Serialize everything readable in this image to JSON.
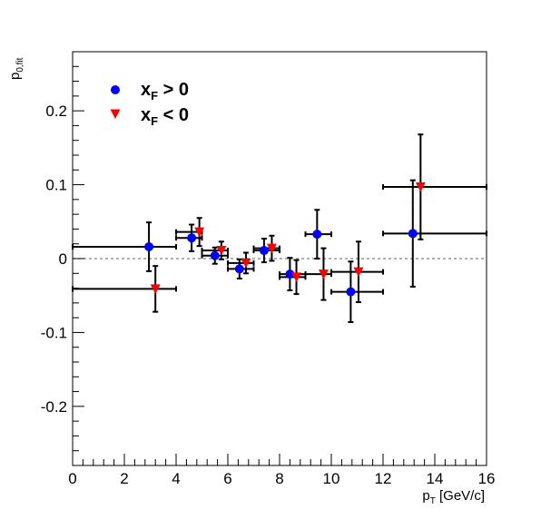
{
  "chart_data": {
    "type": "scatter",
    "xlabel_main": "p",
    "xlabel_sub": "T",
    "xlabel_rest": " [GeV/c]",
    "ylabel_main": "p",
    "ylabel_sub": "0,fit",
    "xlim": [
      0,
      16
    ],
    "ylim": [
      -0.28,
      0.28
    ],
    "x_ticks": [
      "0",
      "2",
      "4",
      "6",
      "8",
      "10",
      "12",
      "14",
      "16"
    ],
    "y_ticks": [
      "-0.2",
      "-0.1",
      "0",
      "0.1",
      "0.2"
    ],
    "y_tick_values": [
      -0.2,
      -0.1,
      0,
      0.1,
      0.2
    ],
    "x_tick_values": [
      0,
      2,
      4,
      6,
      8,
      10,
      12,
      14,
      16
    ],
    "reference_line": 0,
    "legend_position": "top-left",
    "series": [
      {
        "legend_main": "x",
        "legend_sub": "F",
        "legend_rest": " > 0",
        "marker": "circle",
        "color": "#0000ff",
        "points": [
          {
            "x": 2.95,
            "xlo": 0.0,
            "xhi": 4.0,
            "y": 0.016,
            "err": 0.033
          },
          {
            "x": 4.6,
            "xlo": 4.0,
            "xhi": 5.0,
            "y": 0.028,
            "err": 0.018
          },
          {
            "x": 5.5,
            "xlo": 5.0,
            "xhi": 6.0,
            "y": 0.004,
            "err": 0.011
          },
          {
            "x": 6.45,
            "xlo": 6.0,
            "xhi": 7.0,
            "y": -0.014,
            "err": 0.013
          },
          {
            "x": 7.4,
            "xlo": 7.0,
            "xhi": 8.0,
            "y": 0.011,
            "err": 0.016
          },
          {
            "x": 8.4,
            "xlo": 8.0,
            "xhi": 9.0,
            "y": -0.021,
            "err": 0.022
          },
          {
            "x": 9.45,
            "xlo": 9.0,
            "xhi": 10.0,
            "y": 0.033,
            "err": 0.033
          },
          {
            "x": 10.75,
            "xlo": 10.0,
            "xhi": 12.0,
            "y": -0.045,
            "err": 0.041
          },
          {
            "x": 13.15,
            "xlo": 12.0,
            "xhi": 16.0,
            "y": 0.034,
            "err": 0.072
          }
        ]
      },
      {
        "legend_main": "x",
        "legend_sub": "F",
        "legend_rest": " < 0",
        "marker": "triangle-down",
        "color": "#ff0000",
        "points": [
          {
            "x": 3.2,
            "xlo": 0.0,
            "xhi": 4.0,
            "y": -0.041,
            "err": 0.031
          },
          {
            "x": 4.9,
            "xlo": 4.0,
            "xhi": 5.0,
            "y": 0.036,
            "err": 0.019
          },
          {
            "x": 5.75,
            "xlo": 5.0,
            "xhi": 6.0,
            "y": 0.011,
            "err": 0.012
          },
          {
            "x": 6.7,
            "xlo": 6.0,
            "xhi": 7.0,
            "y": -0.006,
            "err": 0.014
          },
          {
            "x": 7.7,
            "xlo": 7.0,
            "xhi": 8.0,
            "y": 0.014,
            "err": 0.017
          },
          {
            "x": 8.65,
            "xlo": 8.0,
            "xhi": 9.0,
            "y": -0.025,
            "err": 0.023
          },
          {
            "x": 9.7,
            "xlo": 9.0,
            "xhi": 10.0,
            "y": -0.021,
            "err": 0.035
          },
          {
            "x": 11.05,
            "xlo": 10.0,
            "xhi": 12.0,
            "y": -0.018,
            "err": 0.041
          },
          {
            "x": 13.45,
            "xlo": 12.0,
            "xhi": 16.0,
            "y": 0.097,
            "err": 0.071
          }
        ]
      }
    ]
  }
}
